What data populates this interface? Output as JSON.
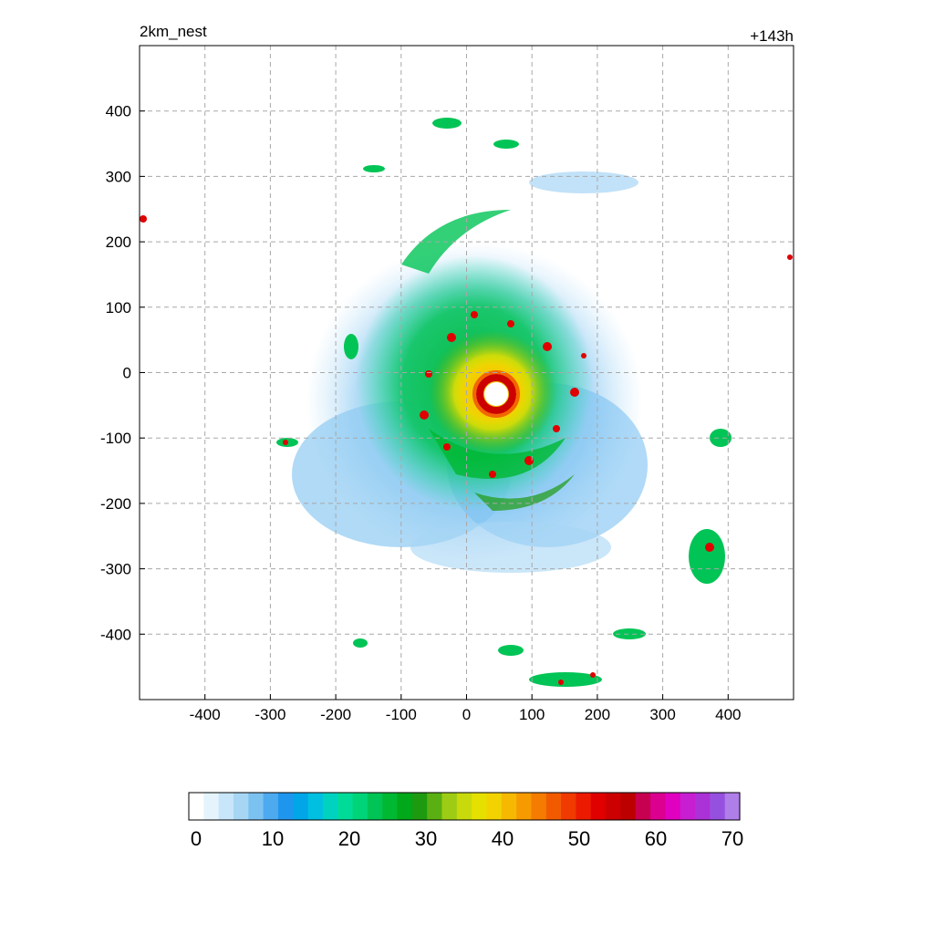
{
  "header": {
    "title_left": "2km_nest",
    "title_right": "+143h"
  },
  "axes": {
    "x_ticks": [
      "-400",
      "-300",
      "-200",
      "-100",
      "0",
      "100",
      "200",
      "300",
      "400"
    ],
    "y_ticks": [
      "400",
      "300",
      "200",
      "100",
      "0",
      "-100",
      "-200",
      "-300",
      "-400"
    ],
    "range": [
      -500,
      500
    ],
    "grid": "dashed gray"
  },
  "colorbar": {
    "min": 0,
    "max": 70,
    "labels": [
      "0",
      "10",
      "20",
      "30",
      "40",
      "50",
      "60",
      "70"
    ],
    "colors": [
      "#ffffff",
      "#e4f3fc",
      "#c8e6f9",
      "#a7d6f5",
      "#7cc2f1",
      "#4eaaef",
      "#1f96ee",
      "#00a6e8",
      "#00bfe0",
      "#00d2c0",
      "#00dc98",
      "#00d478",
      "#00c455",
      "#00b832",
      "#00a81a",
      "#1e9a10",
      "#5ab012",
      "#9ecc14",
      "#c8da0c",
      "#e6e000",
      "#f2d200",
      "#f6b800",
      "#f69a00",
      "#f47c00",
      "#f25a00",
      "#f03a00",
      "#ec1a00",
      "#e00000",
      "#cc0000",
      "#bc0000",
      "#c80050",
      "#dc0090",
      "#e000c0",
      "#c81ed2",
      "#aa32d6",
      "#9650e0",
      "#b07ee8"
    ]
  }
}
